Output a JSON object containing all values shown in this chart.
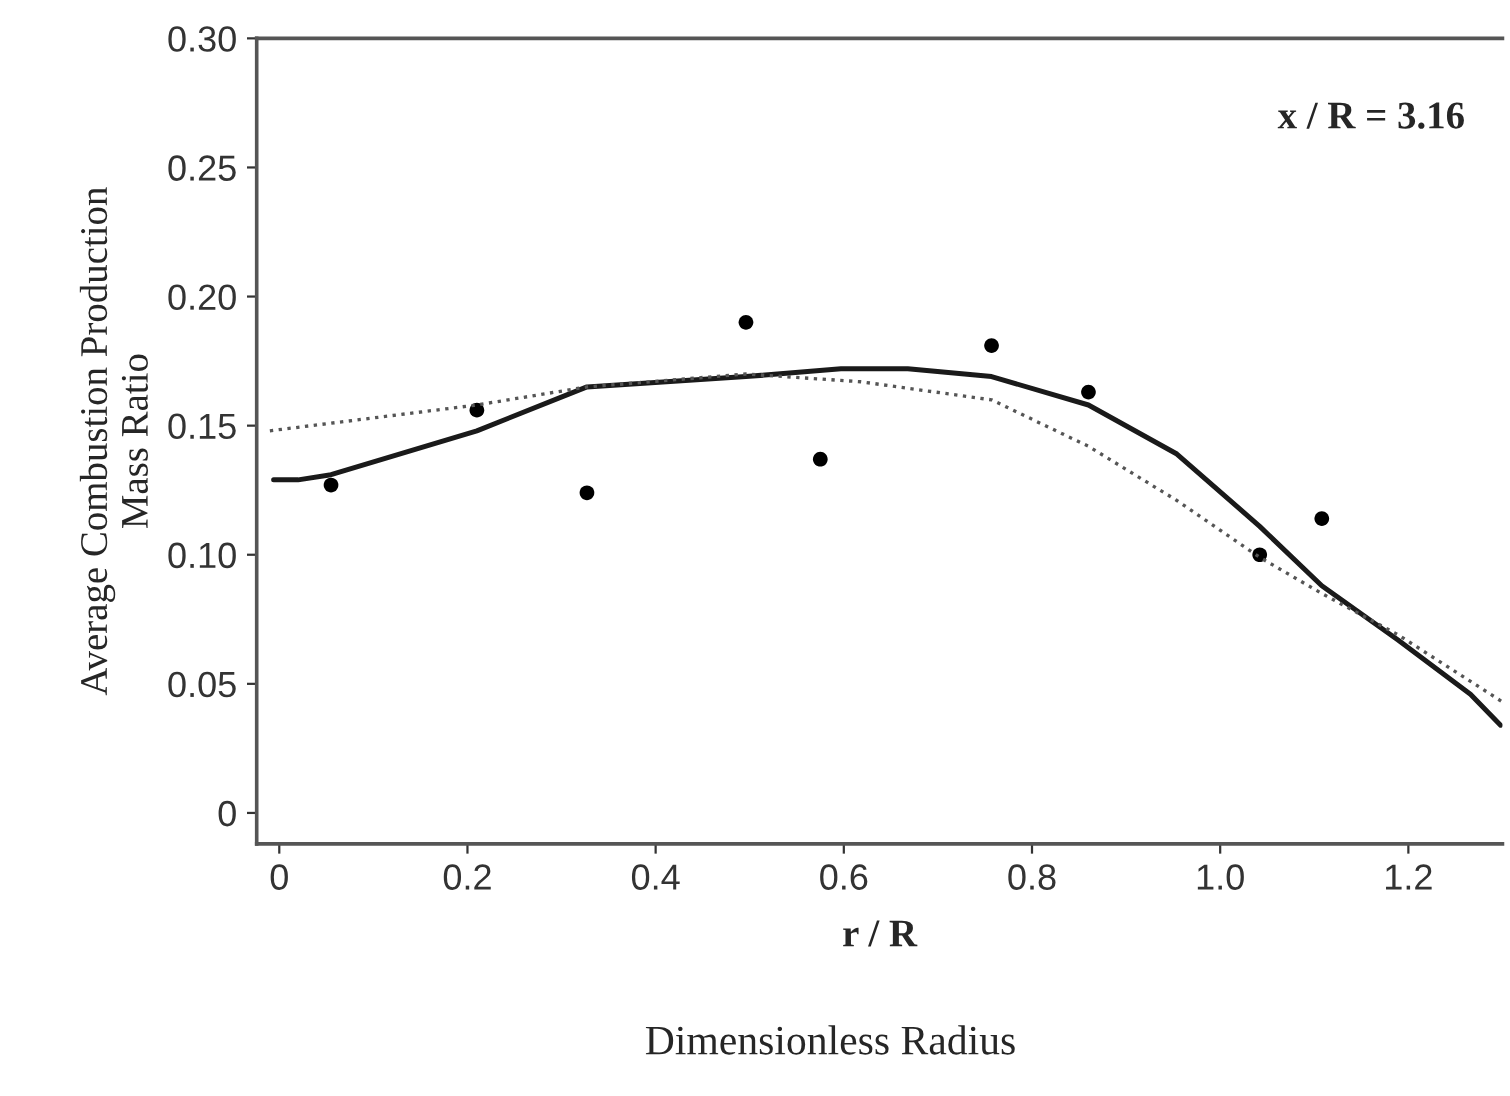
{
  "chart_data": {
    "type": "scatter",
    "xlabel": "r / R",
    "ylabel": "Average Combustion Production\nMass Ratio",
    "annotations": [
      {
        "text": "x / R = 3.16"
      },
      {
        "text": "Dimensionless Radius"
      }
    ],
    "xlim": [
      -0.024,
      1.3
    ],
    "ylim": [
      -0.012,
      0.3
    ],
    "xticks": [
      0,
      0.2,
      0.4,
      0.6,
      0.8,
      {
        "value": 1.0,
        "label": "1.0"
      },
      1.2
    ],
    "yticks": [
      0,
      {
        "value": 0.05,
        "label": "0.05"
      },
      {
        "value": 0.1,
        "label": "0.10"
      },
      {
        "value": 0.15,
        "label": "0.15"
      },
      {
        "value": 0.2,
        "label": "0.20"
      },
      {
        "value": 0.25,
        "label": "0.25"
      },
      {
        "value": 0.3,
        "label": "0.30"
      }
    ],
    "grid": false,
    "legend": false,
    "series": [
      {
        "color": "#000000",
        "marker": "circle",
        "x": [
          0.055,
          0.21,
          0.327,
          0.496,
          0.575,
          0.757,
          0.86,
          1.042,
          1.108
        ],
        "values": [
          0.127,
          0.156,
          0.124,
          0.19,
          0.137,
          0.181,
          0.163,
          0.1,
          0.114
        ]
      },
      {
        "type": "line",
        "color": "#1a1a1a",
        "line_style": "solid",
        "x": [
          -0.006,
          0.02,
          0.055,
          0.21,
          0.327,
          0.496,
          0.597,
          0.668,
          0.757,
          0.86,
          0.954,
          1.042,
          1.108,
          1.189,
          1.266,
          1.298
        ],
        "values": [
          0.129,
          0.129,
          0.131,
          0.148,
          0.165,
          0.169,
          0.172,
          0.172,
          0.169,
          0.158,
          0.139,
          0.111,
          0.088,
          0.067,
          0.046,
          0.034
        ]
      },
      {
        "type": "line",
        "color": "#555555",
        "line_style": "dotted",
        "x": [
          -0.01,
          0.21,
          0.327,
          0.496,
          0.618,
          0.757,
          0.86,
          0.954,
          1.042,
          1.108,
          1.189,
          1.3
        ],
        "values": [
          0.148,
          0.158,
          0.165,
          0.17,
          0.167,
          0.16,
          0.142,
          0.121,
          0.099,
          0.085,
          0.069,
          0.043
        ]
      }
    ]
  }
}
